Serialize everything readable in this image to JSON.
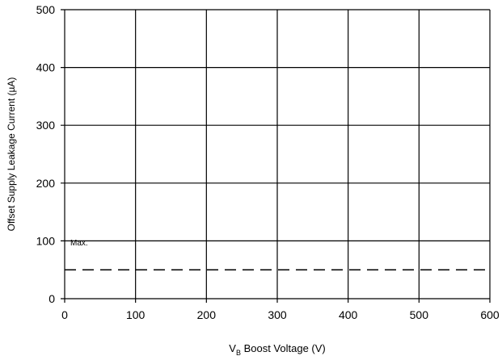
{
  "chart_data": {
    "type": "line",
    "title": "",
    "xlabel_main": "V",
    "xlabel_sub": "B",
    "xlabel_rest": " Boost Voltage (V)",
    "ylabel": "Offset Supply Leakage Current (µA)",
    "xlim": [
      0,
      600
    ],
    "ylim": [
      0,
      500
    ],
    "x_ticks": [
      0,
      100,
      200,
      300,
      400,
      500,
      600
    ],
    "y_ticks": [
      0,
      100,
      200,
      300,
      400,
      500
    ],
    "grid": true,
    "series": [
      {
        "name": "Max.",
        "style": "dashed",
        "color": "#000000",
        "x": [
          0,
          600
        ],
        "y": [
          50,
          50
        ]
      }
    ],
    "annotations": [
      {
        "text": "Max.",
        "x": 8,
        "y": 92
      }
    ]
  }
}
